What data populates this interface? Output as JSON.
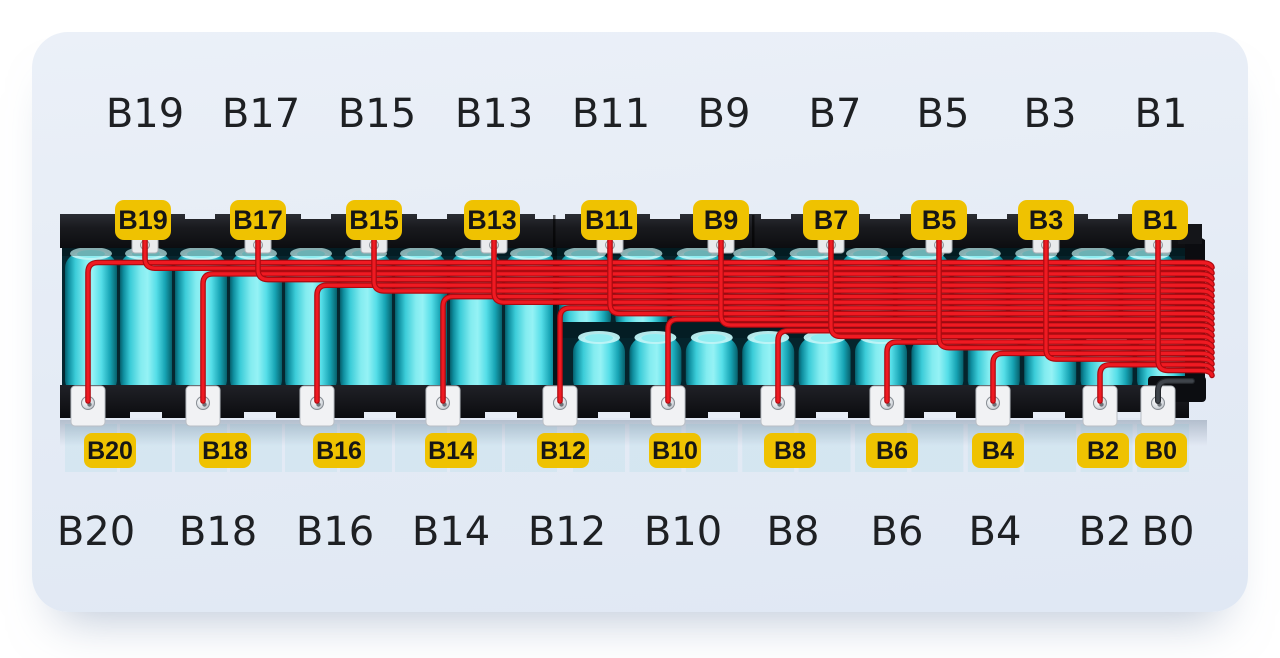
{
  "diagram": {
    "type": "battery-pack-balance-wiring",
    "top_row_labels": [
      "B19",
      "B17",
      "B15",
      "B13",
      "B11",
      "B9",
      "B7",
      "B5",
      "B3",
      "B1"
    ],
    "bottom_row_labels": [
      "B20",
      "B18",
      "B16",
      "B14",
      "B12",
      "B10",
      "B8",
      "B6",
      "B4",
      "B2",
      "B0"
    ],
    "top_badges": [
      "B19",
      "B17",
      "B15",
      "B13",
      "B11",
      "B9",
      "B7",
      "B5",
      "B3",
      "B1"
    ],
    "bottom_badges": [
      "B20",
      "B18",
      "B16",
      "B14",
      "B12",
      "B10",
      "B8",
      "B6",
      "B4",
      "B2",
      "B0"
    ]
  },
  "colors": {
    "page_bg": "#FFFFFF",
    "card_bg_top": "#EBF0F8",
    "card_bg_bottom": "#E0E8F4",
    "badge_bg": "#EFC201",
    "badge_text": "#161616",
    "big_label_text": "#1E2023",
    "wire_red": "#EF1A22",
    "wire_red_dark": "#AC0A10",
    "wire_black": "#3F444B",
    "cell_cyan": "#52DDE7",
    "cell_highlight": "#95F2F5",
    "frame_dark": "#141519",
    "tab_silver": "#F1F2F4"
  }
}
